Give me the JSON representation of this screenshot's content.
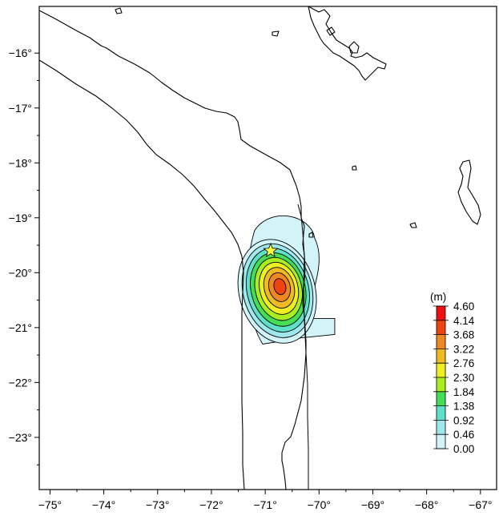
{
  "map": {
    "lon_range": [
      -75.2,
      -66.7
    ],
    "lat_range": [
      -23.95,
      -15.15
    ],
    "x_ticks": [
      {
        "value": -75,
        "label": "−75°"
      },
      {
        "value": -74,
        "label": "−74°"
      },
      {
        "value": -73,
        "label": "−73°"
      },
      {
        "value": -72,
        "label": "−72°"
      },
      {
        "value": -71,
        "label": "−71°"
      },
      {
        "value": -70,
        "label": "−70°"
      },
      {
        "value": -69,
        "label": "−69°"
      },
      {
        "value": -68,
        "label": "−68°"
      },
      {
        "value": -67,
        "label": "−67°"
      }
    ],
    "y_ticks": [
      {
        "value": -16,
        "label": "−16°"
      },
      {
        "value": -17,
        "label": "−17°"
      },
      {
        "value": -18,
        "label": "−18°"
      },
      {
        "value": -19,
        "label": "−19°"
      },
      {
        "value": -20,
        "label": "−20°"
      },
      {
        "value": -21,
        "label": "−21°"
      },
      {
        "value": -22,
        "label": "−22°"
      },
      {
        "value": -23,
        "label": "−23°"
      }
    ],
    "epicenter": {
      "lon": -70.9,
      "lat": -19.6,
      "color": "#ffff40"
    },
    "slip_max": {
      "lon": -70.75,
      "lat": -20.25,
      "value": 4.6
    }
  },
  "colorbar": {
    "unit": "(m)",
    "levels": [
      "0.00",
      "0.46",
      "0.92",
      "1.38",
      "1.84",
      "2.30",
      "2.76",
      "3.22",
      "3.68",
      "4.14",
      "4.60"
    ],
    "colors": [
      "#ffffff",
      "#d2f4f8",
      "#9ee8ee",
      "#5fe0c8",
      "#44dd55",
      "#aaee22",
      "#eeee22",
      "#eebb22",
      "#ee8822",
      "#ee4411",
      "#ee1111"
    ]
  }
}
